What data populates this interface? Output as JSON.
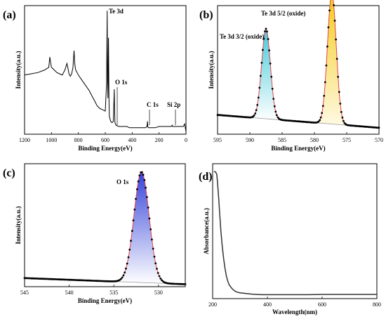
{
  "chart_data": [
    {
      "panel": "(a)",
      "type": "line",
      "xlabel": "Binding Energy(eV)",
      "ylabel": "Intensity(a.u.)",
      "xlim": [
        1200,
        0
      ],
      "x_ticks": [
        "1200",
        "1000",
        "800",
        "600",
        "400",
        "200",
        "0"
      ],
      "annotations": [
        "Te 3d",
        "O 1s",
        "C 1s",
        "Si 2p"
      ],
      "series": [
        {
          "x": [
            1200,
            1150,
            1100,
            1050,
            1020,
            1012,
            1005,
            1000,
            980,
            960,
            940,
            920,
            900,
            885,
            875,
            870,
            860,
            850,
            840,
            832,
            827,
            820,
            800,
            780,
            760,
            740,
            720,
            700,
            680,
            660,
            640,
            620,
            600,
            590,
            586,
            583,
            580,
            576,
            573,
            570,
            560,
            550,
            540,
            533,
            531,
            528,
            520,
            500,
            480,
            460,
            440,
            420,
            400,
            380,
            360,
            340,
            320,
            300,
            290,
            286,
            284,
            280,
            270,
            250,
            230,
            200,
            180,
            160,
            150,
            140,
            120,
            110,
            103,
            100,
            95,
            90,
            80,
            60,
            40,
            20,
            10,
            0
          ],
          "y": [
            0.46,
            0.47,
            0.48,
            0.5,
            0.52,
            0.6,
            0.55,
            0.52,
            0.5,
            0.48,
            0.47,
            0.46,
            0.5,
            0.55,
            0.5,
            0.47,
            0.45,
            0.47,
            0.52,
            0.65,
            0.55,
            0.5,
            0.46,
            0.43,
            0.4,
            0.37,
            0.34,
            0.3,
            0.26,
            0.22,
            0.2,
            0.19,
            0.18,
            0.4,
            0.96,
            0.4,
            0.28,
            0.75,
            0.3,
            0.14,
            0.1,
            0.09,
            0.1,
            0.35,
            0.2,
            0.09,
            0.07,
            0.06,
            0.06,
            0.06,
            0.06,
            0.05,
            0.05,
            0.05,
            0.05,
            0.05,
            0.05,
            0.05,
            0.06,
            0.1,
            0.06,
            0.05,
            0.05,
            0.05,
            0.05,
            0.06,
            0.06,
            0.06,
            0.06,
            0.06,
            0.06,
            0.06,
            0.07,
            0.06,
            0.06,
            0.06,
            0.06,
            0.06,
            0.06,
            0.06,
            0.08,
            0.02
          ]
        }
      ]
    },
    {
      "panel": "(b)",
      "type": "line",
      "xlabel": "Binding Energy(eV)",
      "ylabel": "Intensity(a.u.)",
      "xlim": [
        595,
        570
      ],
      "x_ticks": [
        "595",
        "590",
        "585",
        "580",
        "575",
        "570"
      ],
      "annotations": [
        "Te 3d 3/2 (oxide)",
        "Te 3d 5/2 (oxide)"
      ],
      "peaks": [
        {
          "name": "Te 3d 3/2 (oxide)",
          "center": 587.5,
          "height": 0.7,
          "fwhm": 1.6
        },
        {
          "name": "Te 3d 5/2 (oxide)",
          "center": 577.3,
          "height": 1.02,
          "fwhm": 1.6
        }
      ],
      "background": {
        "start": 0.15,
        "end": 0.05
      }
    },
    {
      "panel": "(c)",
      "type": "line",
      "xlabel": "Binding Energy(eV)",
      "ylabel": "Intensity(a.u.)",
      "xlim": [
        545,
        527
      ],
      "x_ticks": [
        "545",
        "540",
        "535",
        "530"
      ],
      "annotations": [
        "O 1s"
      ],
      "peaks": [
        {
          "name": "O 1s",
          "center": 531.9,
          "height": 0.9,
          "fwhm": 2.0
        }
      ],
      "background": {
        "start": 0.07,
        "end": 0.02
      }
    },
    {
      "panel": "(d)",
      "type": "line",
      "xlabel": "Wavelength(nm)",
      "ylabel": "Absorbance(a.u.)",
      "xlim": [
        200,
        800
      ],
      "x_ticks": [
        "200",
        "400",
        "600",
        "800"
      ],
      "series": [
        {
          "x": [
            205,
            210,
            215,
            218,
            222,
            226,
            230,
            235,
            240,
            245,
            250,
            255,
            260,
            270,
            280,
            290,
            300,
            320,
            340,
            360,
            380,
            400,
            450,
            500,
            550,
            600,
            650,
            700,
            750,
            800
          ],
          "y": [
            0.99,
            0.99,
            0.97,
            0.9,
            0.78,
            0.65,
            0.52,
            0.4,
            0.3,
            0.22,
            0.16,
            0.12,
            0.09,
            0.06,
            0.04,
            0.03,
            0.025,
            0.02,
            0.015,
            0.012,
            0.01,
            0.01,
            0.01,
            0.01,
            0.01,
            0.012,
            0.012,
            0.012,
            0.012,
            0.012
          ]
        }
      ]
    }
  ]
}
